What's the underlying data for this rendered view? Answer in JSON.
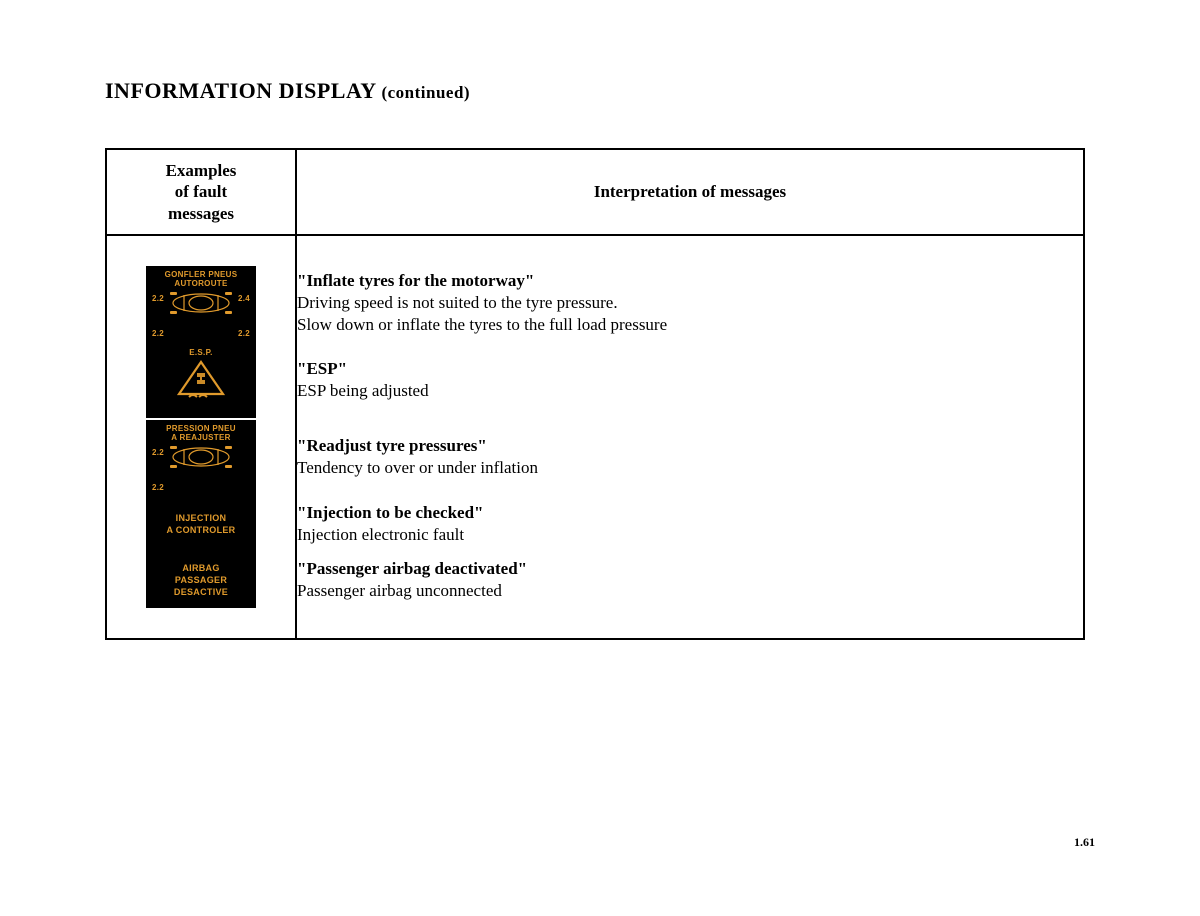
{
  "page": {
    "title_main": "INFORMATION DISPLAY",
    "title_cont": " (continued)",
    "page_number": "1.61"
  },
  "table": {
    "header_examples": "Examples\nof fault\nmessages",
    "header_interpretation": "Interpretation of messages"
  },
  "colors": {
    "icon_bg": "#000000",
    "icon_fg": "#e09a2c",
    "text": "#000000",
    "page_bg": "#ffffff"
  },
  "rows": [
    {
      "icon": {
        "type": "tyre-car",
        "line1": "GONFLER PNEUS",
        "line2": "AUTOROUTE",
        "tl": "2.2",
        "tr": "2.4",
        "bl": "2.2",
        "br": "2.2"
      },
      "title": "\"Inflate tyres for the motorway\"",
      "body": "Driving speed is not suited to the tyre pressure.\nSlow down or inflate the tyres to the full load pressure"
    },
    {
      "icon": {
        "type": "esp",
        "line1": "E.S.P."
      },
      "title": "\"ESP\"",
      "body": "ESP being adjusted"
    },
    {
      "icon": {
        "type": "tyre-car",
        "line1": "PRESSION PNEU",
        "line2": "A REAJUSTER",
        "tl": "2.2",
        "tr": "",
        "bl": "2.2",
        "br": ""
      },
      "title": "\"Readjust tyre pressures\"",
      "body": "Tendency to over or under inflation"
    },
    {
      "icon": {
        "type": "text",
        "line1": "INJECTION",
        "line2": "A CONTROLER"
      },
      "title": "\"Injection to be checked\"",
      "body": "Injection electronic fault"
    },
    {
      "icon": {
        "type": "text",
        "line1": "AIRBAG",
        "line2": "PASSAGER",
        "line3": "DESACTIVE"
      },
      "title": "\"Passenger airbag deactivated\"",
      "body": "Passenger airbag unconnected"
    }
  ]
}
